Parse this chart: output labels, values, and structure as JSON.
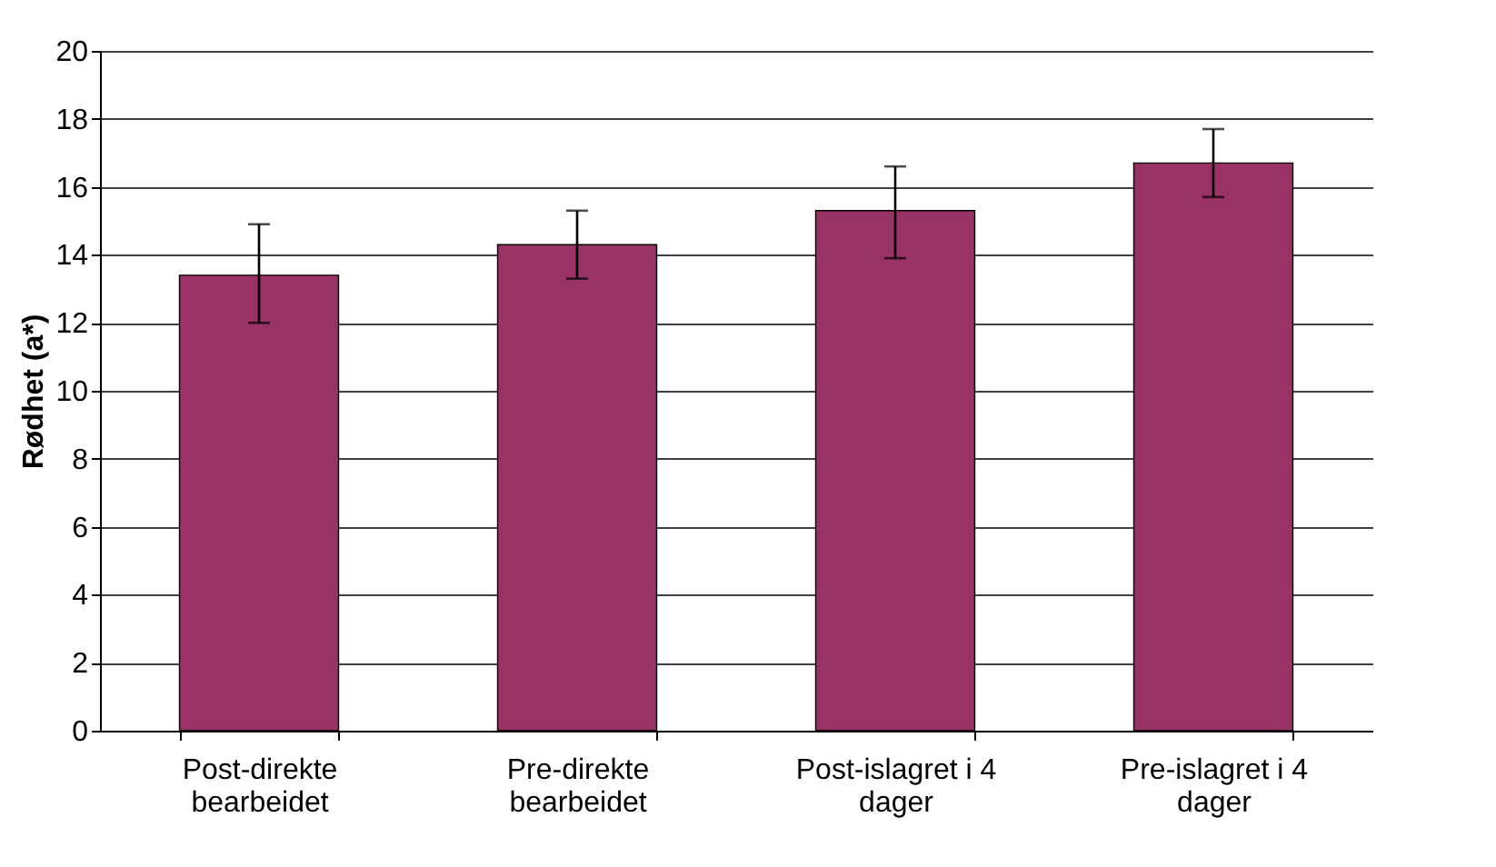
{
  "chart_data": {
    "type": "bar",
    "ylabel": "Rødhet (a*)",
    "categories": [
      "Post-direkte bearbeidet",
      "Pre-direkte bearbeidet",
      "Post-islagret i 4 dager",
      "Pre-islagret i 4 dager"
    ],
    "values": [
      13.4,
      14.3,
      15.3,
      16.7
    ],
    "errors": [
      [
        12.0,
        14.9
      ],
      [
        13.3,
        15.3
      ],
      [
        13.9,
        16.6
      ],
      [
        15.7,
        17.7
      ]
    ],
    "color": "#993366",
    "ylim": [
      0,
      20
    ],
    "yticks": [
      0,
      2,
      4,
      6,
      8,
      10,
      12,
      14,
      16,
      18,
      20
    ],
    "grid": "y"
  }
}
